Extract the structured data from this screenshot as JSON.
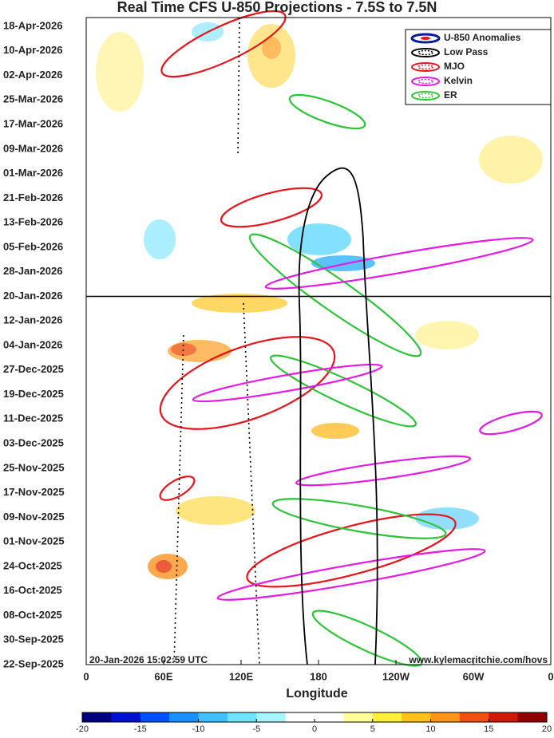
{
  "chart_data": {
    "type": "hovmoller",
    "title": "Real Time CFS U-850 Projections - 7.5S to 7.5N",
    "x_label": "Longitude",
    "categories": [
      "18-Apr-2026",
      "10-Apr-2026",
      "02-Apr-2026",
      "25-Mar-2026",
      "17-Mar-2026",
      "09-Mar-2026",
      "01-Mar-2026",
      "21-Feb-2026",
      "13-Feb-2026",
      "05-Feb-2026",
      "28-Jan-2026",
      "20-Jan-2026",
      "12-Jan-2026",
      "04-Jan-2026",
      "27-Dec-2025",
      "19-Dec-2025",
      "11-Dec-2025",
      "03-Dec-2025",
      "25-Nov-2025",
      "17-Nov-2025",
      "09-Nov-2025",
      "01-Nov-2025",
      "24-Oct-2025",
      "16-Oct-2025",
      "08-Oct-2025",
      "30-Sep-2025",
      "22-Sep-2025"
    ],
    "xlim": [
      0,
      360
    ],
    "xticks": [
      0,
      {
        "value": 60,
        "label": "60E"
      },
      {
        "value": 120,
        "label": "120E"
      },
      180,
      {
        "value": 240,
        "label": "120W"
      },
      {
        "value": 300,
        "label": "60W"
      },
      {
        "value": 360,
        "label": "0"
      }
    ],
    "series": [
      {
        "name": "U-850 Anomalies",
        "color": "#0a1a9a"
      },
      {
        "name": "Low Pass",
        "color": "#000000"
      },
      {
        "name": "MJO",
        "color": "#e8141c"
      },
      {
        "name": "Kelvin",
        "color": "#e619e6"
      },
      {
        "name": "ER",
        "color": "#2ec43a"
      }
    ],
    "colorbar": {
      "lim": [
        -20,
        20
      ],
      "ticks": [
        -20,
        -15,
        -10,
        -5,
        0,
        5,
        10,
        15,
        20
      ],
      "colors": [
        "#00007f",
        "#0010d0",
        "#0050ff",
        "#1890ff",
        "#40c0ff",
        "#70e4ff",
        "#a8f4ff",
        "#ffffff",
        "#ffffff",
        "#ffff9a",
        "#ffef3a",
        "#ffc21a",
        "#ff941a",
        "#f05010",
        "#d01808",
        "#8f0000"
      ]
    },
    "timestamp": "20-Jan-2026 15:02:59 UTC",
    "source": "www.kylemacritchie.com/hovs"
  }
}
